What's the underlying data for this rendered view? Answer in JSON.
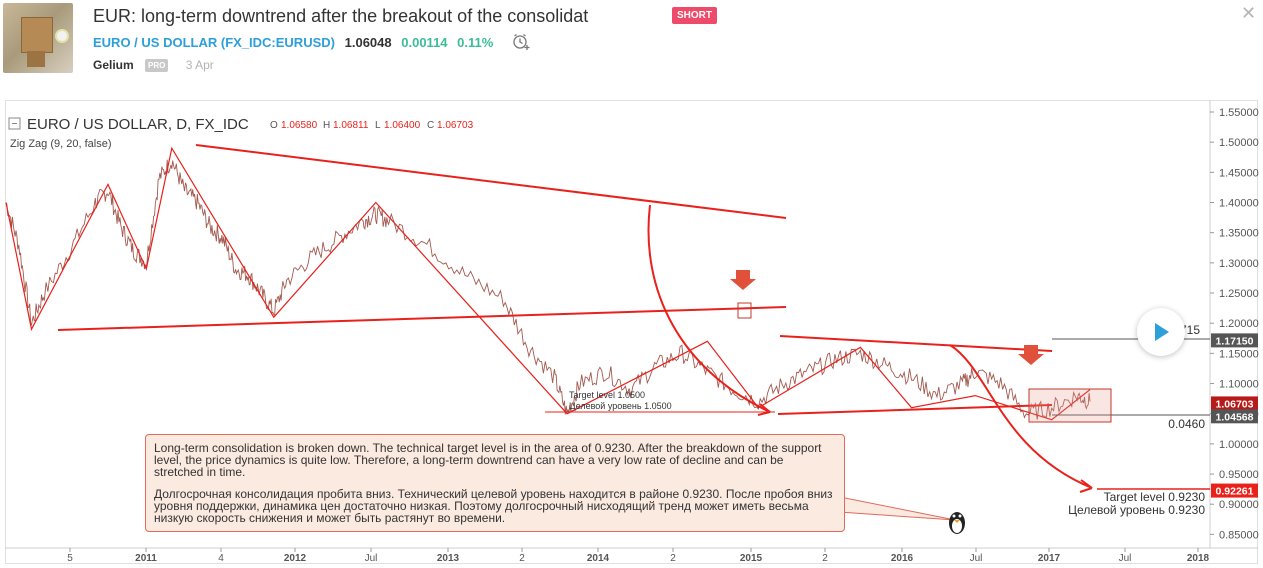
{
  "header": {
    "title": "EUR: long-term downtrend after the breakout of the consolidat",
    "badge": "SHORT",
    "symbol_name": "EURO / US DOLLAR",
    "symbol_code": "FX_IDC:EURUSD",
    "price": "1.06048",
    "change": "0.00114",
    "change_pct": "0.11%",
    "author": "Gelium",
    "author_badge": "PRO",
    "date": "3 Apr"
  },
  "legend": {
    "symbol": "EURO / US DOLLAR, D, FX_IDC",
    "o_label": "O",
    "o": "1.06580",
    "h_label": "H",
    "h": "1.06811",
    "l_label": "L",
    "l": "1.06400",
    "c_label": "C",
    "c": "1.06703",
    "indicator": "Zig Zag (9, 20, false)"
  },
  "colors": {
    "accent_red": "#e8211b",
    "up_green": "#3cbc98",
    "link_blue": "#2d9fd9"
  },
  "annotations": {
    "target_en": "Target level 1.0500",
    "target_ru": "Целевой уровень 1.0500",
    "target2_en": "Target level 0.9230",
    "target2_ru": "Целевой уровень 0.9230",
    "label_0460": "0.0460",
    "label_715": "715"
  },
  "note": {
    "en": "Long-term consolidation is broken down. The technical target level is in the area of 0.9230. After the breakdown of the support level, the price dynamics is quite low. Therefore, a long-term downtrend can have a very low rate of decline and can be stretched in time.",
    "ru": "Долгосрочная консолидация пробита вниз. Технический целевой уровень находится в районе 0.9230. После пробоя вниз уровня поддержки, динамика цен достаточно низкая. Поэтому долгосрочный нисходящий тренд может иметь весьма низкую скорость снижения и может быть растянут во времени."
  },
  "chart_data": {
    "type": "line",
    "title": "EURO / US DOLLAR, D, FX_IDC",
    "ylim": [
      0.83,
      1.56
    ],
    "y_ticks": [
      "1.55000",
      "1.50000",
      "1.45000",
      "1.40000",
      "1.35000",
      "1.30000",
      "1.25000",
      "1.20000",
      "1.15000",
      "1.10000",
      "1.05000",
      "1.00000",
      "0.95000",
      "0.90000",
      "0.85000"
    ],
    "x_ticks": [
      "5",
      "2011",
      "4",
      "2012",
      "Jul",
      "2013",
      "2",
      "2014",
      "2",
      "2015",
      "2",
      "2016",
      "Jul",
      "2017",
      "Jul",
      "2018"
    ],
    "price_tags": [
      {
        "label": "1.17150",
        "value": 1.1715,
        "color": "#555555"
      },
      {
        "label": "1.06703",
        "value": 1.06703,
        "color": "#b81a1a"
      },
      {
        "label": "1.04568",
        "value": 1.04568,
        "color": "#555555"
      },
      {
        "label": "0.92261",
        "value": 0.92261,
        "color": "#e8211b"
      }
    ],
    "zigzag_series": {
      "name": "Zig Zag (9, 20, false)",
      "x": [
        0.0,
        0.2,
        0.8,
        1.1,
        1.3,
        2.1,
        2.9,
        4.4,
        5.5,
        5.9,
        6.7,
        7.1,
        7.6,
        8.2,
        8.5
      ],
      "y": [
        1.4,
        1.19,
        1.43,
        1.29,
        1.49,
        1.21,
        1.4,
        1.05,
        1.17,
        1.06,
        1.16,
        1.06,
        1.08,
        1.04,
        1.09
      ]
    },
    "price_series": {
      "name": "EURO / US DOLLAR",
      "x": [
        0.0,
        0.1,
        0.2,
        0.3,
        0.5,
        0.7,
        0.8,
        0.9,
        1.0,
        1.1,
        1.2,
        1.3,
        1.4,
        1.5,
        1.6,
        1.7,
        1.8,
        1.9,
        2.0,
        2.1,
        2.2,
        2.4,
        2.6,
        2.8,
        2.9,
        3.0,
        3.3,
        3.6,
        3.9,
        4.1,
        4.3,
        4.4,
        4.5,
        4.7,
        4.9,
        5.1,
        5.3,
        5.5,
        5.7,
        5.9,
        6.1,
        6.3,
        6.5,
        6.7,
        6.9,
        7.1,
        7.3,
        7.5,
        7.6,
        7.8,
        8.0,
        8.2,
        8.4,
        8.5
      ],
      "y": [
        1.4,
        1.33,
        1.2,
        1.25,
        1.32,
        1.4,
        1.42,
        1.36,
        1.32,
        1.3,
        1.44,
        1.47,
        1.42,
        1.4,
        1.36,
        1.34,
        1.29,
        1.28,
        1.25,
        1.22,
        1.27,
        1.31,
        1.34,
        1.37,
        1.38,
        1.37,
        1.33,
        1.28,
        1.24,
        1.16,
        1.11,
        1.05,
        1.1,
        1.12,
        1.09,
        1.13,
        1.15,
        1.12,
        1.09,
        1.07,
        1.1,
        1.12,
        1.14,
        1.15,
        1.13,
        1.11,
        1.08,
        1.1,
        1.12,
        1.1,
        1.05,
        1.06,
        1.08,
        1.07
      ]
    }
  }
}
